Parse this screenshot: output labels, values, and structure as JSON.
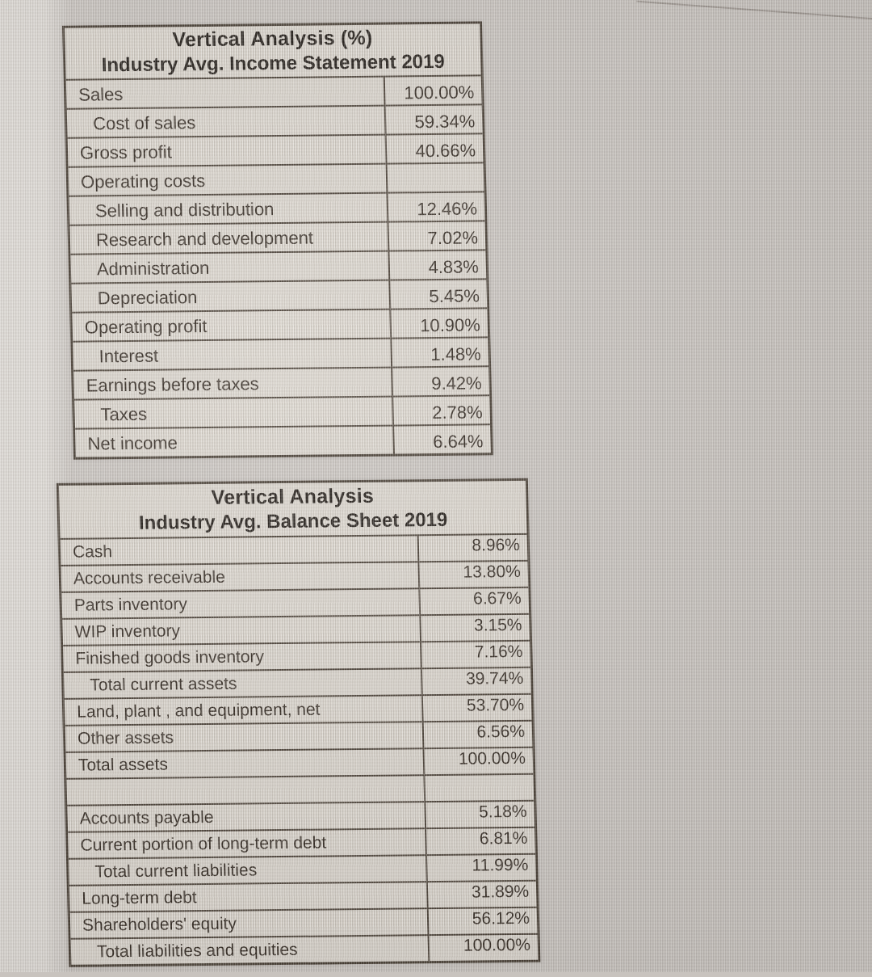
{
  "document_type": "photographed spreadsheet tables",
  "colors": {
    "page_background": "#c8c3be",
    "table_paper": "#d8d2c9",
    "table_border": "#463c32",
    "text": "#30271f",
    "title_text": "#1e1813",
    "left_glare_band": "#dedad5"
  },
  "tables": [
    {
      "title_line1": "Vertical Analysis (%)",
      "title_line2": "Industry Avg. Income Statement 2019",
      "rows": [
        {
          "label": "Sales",
          "value": "100.00%",
          "indent": 0
        },
        {
          "label": "Cost of sales",
          "value": "59.34%",
          "indent": 1
        },
        {
          "label": "Gross profit",
          "value": "40.66%",
          "indent": 0
        },
        {
          "label": "Operating costs",
          "value": "",
          "indent": 0
        },
        {
          "label": "Selling and distribution",
          "value": "12.46%",
          "indent": 1
        },
        {
          "label": "Research and development",
          "value": "7.02%",
          "indent": 1
        },
        {
          "label": "Administration",
          "value": "4.83%",
          "indent": 1
        },
        {
          "label": "Depreciation",
          "value": "5.45%",
          "indent": 1
        },
        {
          "label": "Operating profit",
          "value": "10.90%",
          "indent": 0
        },
        {
          "label": "Interest",
          "value": "1.48%",
          "indent": 1
        },
        {
          "label": "Earnings before taxes",
          "value": "9.42%",
          "indent": 0
        },
        {
          "label": "Taxes",
          "value": "2.78%",
          "indent": 1
        },
        {
          "label": "Net income",
          "value": "6.64%",
          "indent": 0
        }
      ]
    },
    {
      "title_line1": "Vertical Analysis",
      "title_line2": "Industry Avg. Balance Sheet 2019",
      "rows": [
        {
          "label": "Cash",
          "value": "8.96%",
          "indent": 0
        },
        {
          "label": "Accounts receivable",
          "value": "13.80%",
          "indent": 0
        },
        {
          "label": "Parts inventory",
          "value": "6.67%",
          "indent": 0
        },
        {
          "label": "WIP inventory",
          "value": "3.15%",
          "indent": 0
        },
        {
          "label": "Finished goods inventory",
          "value": "7.16%",
          "indent": 0
        },
        {
          "label": "Total current assets",
          "value": "39.74%",
          "indent": 1
        },
        {
          "label": "Land, plant , and equipment, net",
          "value": "53.70%",
          "indent": 0
        },
        {
          "label": "Other assets",
          "value": "6.56%",
          "indent": 0
        },
        {
          "label": "Total assets",
          "value": "100.00%",
          "indent": 0
        },
        {
          "label": "",
          "value": "",
          "indent": 0
        },
        {
          "label": "Accounts payable",
          "value": "5.18%",
          "indent": 0
        },
        {
          "label": "Current portion of long-term debt",
          "value": "6.81%",
          "indent": 0
        },
        {
          "label": "Total current liabilities",
          "value": "11.99%",
          "indent": 1
        },
        {
          "label": "Long-term debt",
          "value": "31.89%",
          "indent": 0
        },
        {
          "label": "Shareholders' equity",
          "value": "56.12%",
          "indent": 0
        },
        {
          "label": "Total liabilities and equities",
          "value": "100.00%",
          "indent": 1
        }
      ]
    }
  ]
}
